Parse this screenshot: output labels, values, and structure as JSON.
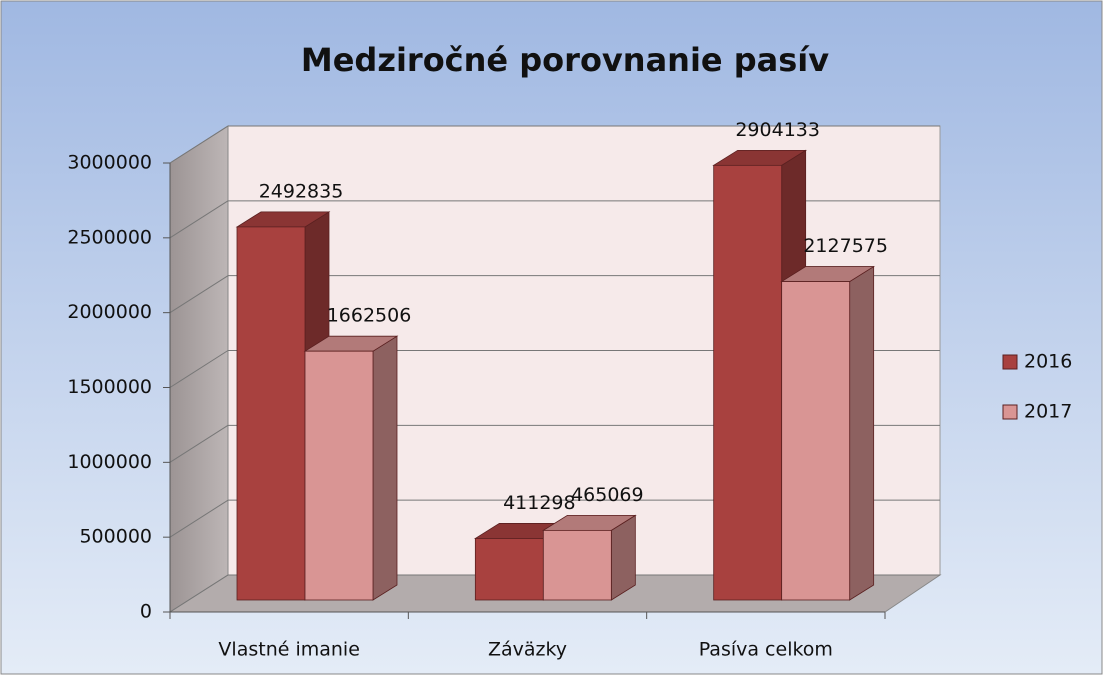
{
  "chart_data": {
    "type": "bar3d",
    "title": "Medziročné porovnanie pasív",
    "categories": [
      "Vlastné imanie",
      "Záväzky",
      "Pasíva celkom"
    ],
    "series": [
      {
        "name": "2016",
        "color": "#a8413f",
        "values": [
          2492835,
          411298,
          2904133
        ]
      },
      {
        "name": "2017",
        "color": "#d99594",
        "values": [
          1662506,
          465069,
          2127575
        ]
      }
    ],
    "ylim": [
      0,
      3000000
    ],
    "yticks": [
      0,
      500000,
      1000000,
      1500000,
      2000000,
      2500000,
      3000000
    ],
    "grid": true,
    "legend": "right"
  }
}
